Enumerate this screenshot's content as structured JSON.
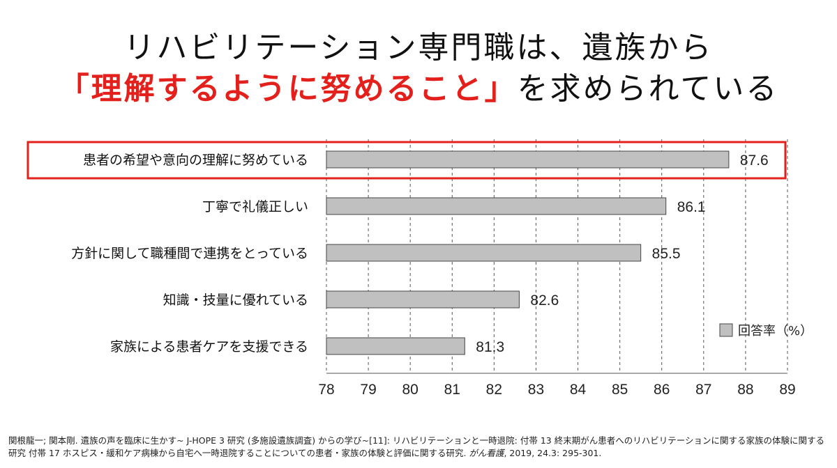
{
  "title": {
    "line1": "リハビリテーション専門職は、遺族から",
    "line2_highlight": "「理解するように努めること」",
    "line2_rest": "を求められている"
  },
  "colors": {
    "highlight": "#e3201b",
    "bar_fill": "#c0c0c0",
    "bar_stroke": "#444444",
    "grid": "#555555"
  },
  "chart_data": {
    "type": "bar",
    "orientation": "horizontal",
    "categories": [
      "患者の希望や意向の理解に努めている",
      "丁寧で礼儀正しい",
      "方針に関して職種間で連携をとっている",
      "知識・技量に優れている",
      "家族による患者ケアを支援できる"
    ],
    "series": [
      {
        "name": "回答率（%）",
        "values": [
          87.6,
          86.1,
          85.5,
          82.6,
          81.3
        ]
      }
    ],
    "value_labels": [
      "87.6",
      "86.1",
      "85.5",
      "82.6",
      "81.3"
    ],
    "highlighted_index": 0,
    "xlim": [
      78,
      89
    ],
    "xticks": [
      "78",
      "79",
      "80",
      "81",
      "82",
      "83",
      "84",
      "85",
      "86",
      "87",
      "88",
      "89"
    ],
    "grid": "vertical dashed",
    "legend": {
      "label": "回答率（%）",
      "placement": "right"
    },
    "title": "",
    "xlabel": "",
    "ylabel": ""
  },
  "citation": {
    "text": "関根龍一; 関本剛. 遺族の声を臨床に生かす~ J-HOPE 3 研究 (多施設遺族調査) からの学び~[11]: リハビリテーションと一時退院: 付帯 13 終末期がん患者へのリハビリテーションに関する家族の体験に関する研究 付帯 17 ホスピス・緩和ケア病棟から自宅へ一時退院することについての患者・家族の体験と評価に関する研究.",
    "journal": "がん看護",
    "details": ", 2019, 24.3: 295-301."
  }
}
